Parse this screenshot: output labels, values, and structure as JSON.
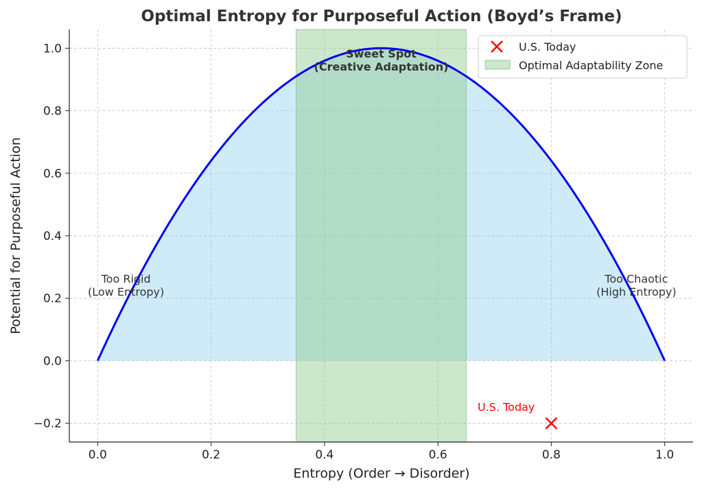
{
  "chart_data": {
    "type": "line",
    "title": "Optimal Entropy for Purposeful Action (Boyd’s Frame)",
    "xlabel": "Entropy (Order → Disorder)",
    "ylabel": "Potential for Purposeful Action",
    "xlim": [
      -0.05,
      1.05
    ],
    "ylim": [
      -0.26,
      1.06
    ],
    "xticks": [
      0.0,
      0.2,
      0.4,
      0.6,
      0.8,
      1.0
    ],
    "xtick_labels": [
      "0.0",
      "0.2",
      "0.4",
      "0.6",
      "0.8",
      "1.0"
    ],
    "yticks": [
      -0.2,
      0.0,
      0.2,
      0.4,
      0.6,
      0.8,
      1.0
    ],
    "ytick_labels": [
      "−0.2",
      "0.0",
      "0.2",
      "0.4",
      "0.6",
      "0.8",
      "1.0"
    ],
    "grid": true,
    "legend_position": "top-right",
    "curve": {
      "formula": "y = 4x(1-x)",
      "color": "#0000ee",
      "fill_color": "#87ceeb",
      "x": [
        0,
        0.05,
        0.1,
        0.15,
        0.2,
        0.25,
        0.3,
        0.35,
        0.4,
        0.45,
        0.5,
        0.55,
        0.6,
        0.65,
        0.7,
        0.75,
        0.8,
        0.85,
        0.9,
        0.95,
        1.0
      ],
      "y": [
        0,
        0.19,
        0.36,
        0.51,
        0.64,
        0.75,
        0.84,
        0.91,
        0.96,
        0.99,
        1.0,
        0.99,
        0.96,
        0.91,
        0.84,
        0.75,
        0.64,
        0.51,
        0.36,
        0.19,
        0
      ]
    },
    "zone": {
      "name": "Optimal Adaptability Zone",
      "x_start": 0.35,
      "x_end": 0.65,
      "color": "#8fc98f"
    },
    "marker": {
      "name": "U.S. Today",
      "x": 0.8,
      "y": -0.2,
      "color": "#ff0000",
      "label": "U.S. Today"
    },
    "annotations": [
      {
        "id": "sweet-spot",
        "lines": [
          "Sweet Spot",
          "(Creative Adaptation)"
        ],
        "x": 0.5,
        "y": 0.97,
        "bold": true
      },
      {
        "id": "too-rigid",
        "lines": [
          "Too Rigid",
          "(Low Entropy)"
        ],
        "x": 0.05,
        "y": 0.25,
        "bold": false
      },
      {
        "id": "too-chaotic",
        "lines": [
          "Too Chaotic",
          "(High Entropy)"
        ],
        "x": 0.95,
        "y": 0.25,
        "bold": false
      }
    ],
    "legend": [
      {
        "label": "U.S. Today",
        "kind": "marker"
      },
      {
        "label": "Optimal Adaptability Zone",
        "kind": "patch"
      }
    ]
  }
}
